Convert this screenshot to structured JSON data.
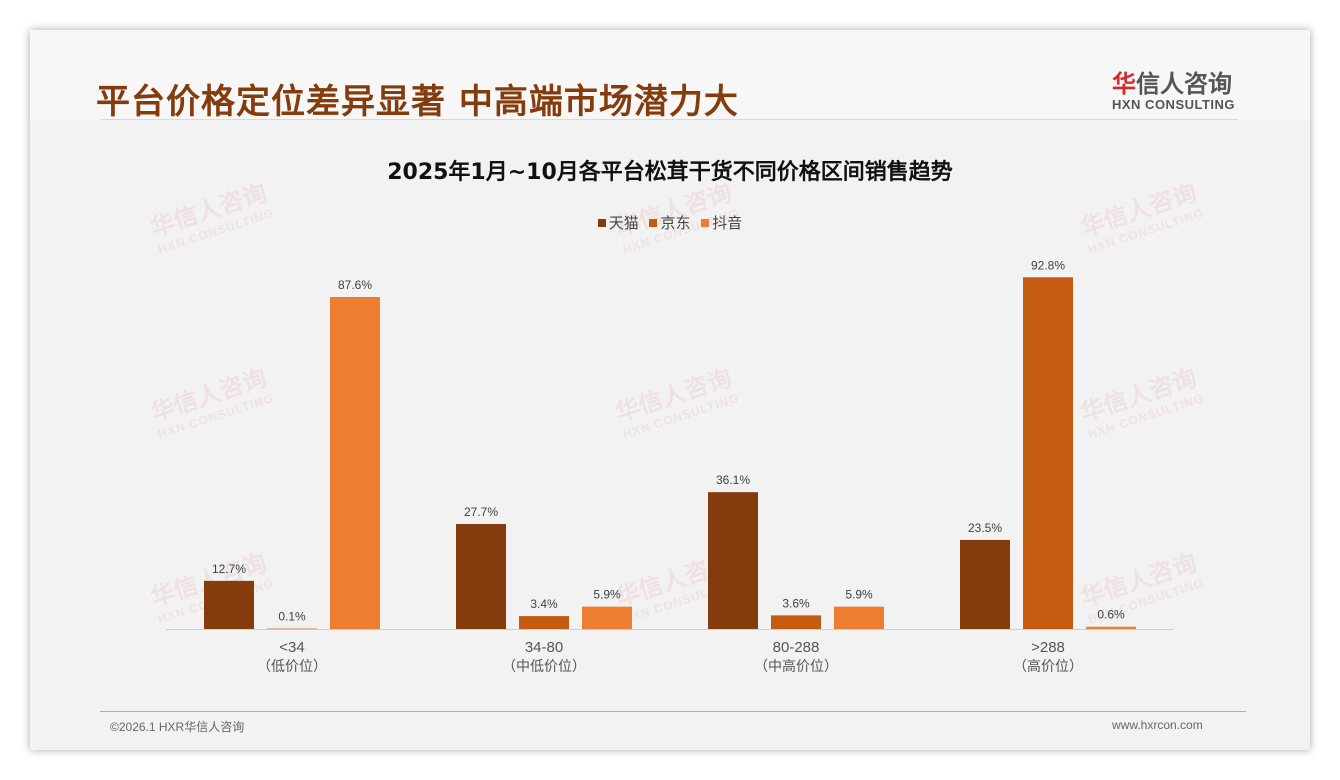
{
  "header": {
    "title": "平台价格定位差异显著 中高端市场潜力大"
  },
  "logo": {
    "cn_mark": "华",
    "cn_rest": "信人咨询",
    "en": "HXN CONSULTING"
  },
  "watermark": {
    "cn": "华信人咨询",
    "en": "HXN CONSULTING"
  },
  "chart_data": {
    "type": "bar",
    "title": "2025年1月~10月各平台松茸干货不同价格区间销售趋势",
    "categories": [
      "<34",
      "34-80",
      "80-288",
      ">288"
    ],
    "category_sublabels": [
      "（低价位）",
      "（中低价位）",
      "（中高价位）",
      "（高价位）"
    ],
    "series": [
      {
        "name": "天猫",
        "color": "#843c0c",
        "values": [
          12.7,
          27.7,
          36.1,
          23.5
        ]
      },
      {
        "name": "京东",
        "color": "#c55a11",
        "values": [
          0.1,
          3.4,
          3.6,
          92.8
        ]
      },
      {
        "name": "抖音",
        "color": "#ed7d31",
        "values": [
          87.6,
          5.9,
          5.9,
          0.6
        ]
      }
    ],
    "value_suffix": "%",
    "ylim": [
      0,
      100
    ],
    "legend": "top-center",
    "grid": false
  },
  "footer": {
    "copyright": "©2026.1 HXR华信人咨询",
    "url": "www.hxrcon.com"
  }
}
